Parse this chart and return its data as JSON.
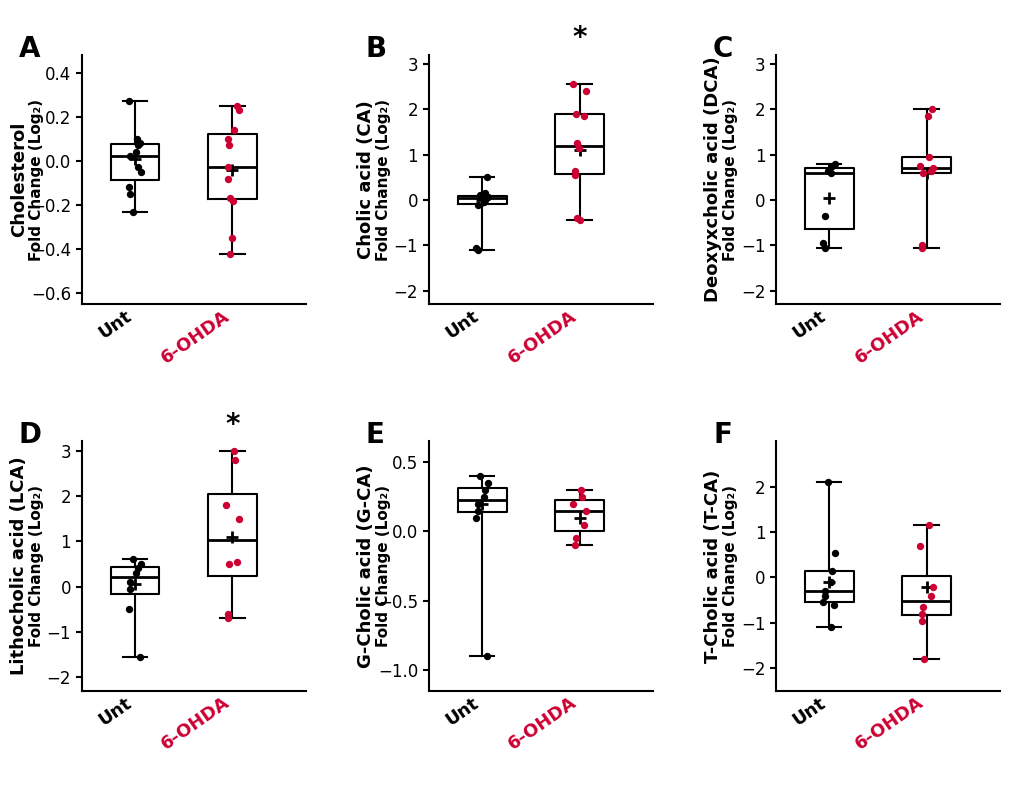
{
  "panels": [
    {
      "label": "A",
      "ylabel_bold": "Cholesterol",
      "ylabel_sub": "Fold Change (Log₂)",
      "ylim": [
        -0.65,
        0.48
      ],
      "yticks": [
        -0.6,
        -0.4,
        -0.2,
        0.0,
        0.2,
        0.4
      ],
      "significance": null,
      "unt_data": [
        -0.23,
        -0.05,
        0.07,
        0.04,
        0.02,
        -0.15,
        -0.12,
        0.08,
        0.1,
        -0.03,
        0.27
      ],
      "ohda_data": [
        0.23,
        0.25,
        0.07,
        0.1,
        -0.03,
        -0.17,
        -0.18,
        -0.35,
        -0.42,
        0.14,
        -0.08
      ],
      "unt_mean": 0.01,
      "ohda_mean": -0.04
    },
    {
      "label": "B",
      "ylabel_bold": "Cholic acid (CA)",
      "ylabel_sub": "Fold Change (Log₂)",
      "ylim": [
        -2.3,
        3.2
      ],
      "yticks": [
        -2,
        -1,
        0,
        1,
        2,
        3
      ],
      "significance": "*",
      "unt_data": [
        0.1,
        0.07,
        0.15,
        -0.05,
        -0.1,
        -1.1,
        -1.05,
        0.5,
        0.08,
        0.0
      ],
      "ohda_data": [
        2.55,
        2.4,
        1.85,
        1.9,
        0.65,
        0.55,
        -0.4,
        -0.45,
        1.15,
        1.25
      ],
      "unt_mean": 0.0,
      "ohda_mean": 1.1
    },
    {
      "label": "C",
      "ylabel_bold": "Deoxyxcholic acid (DCA)",
      "ylabel_sub": "Fold Change (Log₂)",
      "ylim": [
        -2.3,
        3.2
      ],
      "yticks": [
        -2,
        -1,
        0,
        1,
        2,
        3
      ],
      "significance": null,
      "unt_data": [
        0.65,
        0.8,
        0.75,
        0.6,
        -0.35,
        -1.05,
        -0.95
      ],
      "ohda_data": [
        2.0,
        1.85,
        0.95,
        0.75,
        0.7,
        0.65,
        0.6,
        -1.05,
        -1.0
      ],
      "unt_mean": 0.05,
      "ohda_mean": 0.6
    },
    {
      "label": "D",
      "ylabel_bold": "Lithocholic acid (LCA)",
      "ylabel_sub": "Fold Change (Log₂)",
      "ylim": [
        -2.3,
        3.2
      ],
      "yticks": [
        -2,
        -1,
        0,
        1,
        2,
        3
      ],
      "significance": "*",
      "unt_data": [
        0.6,
        0.5,
        0.4,
        0.3,
        0.1,
        -0.05,
        -0.5,
        -1.55
      ],
      "ohda_data": [
        3.0,
        2.8,
        1.8,
        1.5,
        0.55,
        0.5,
        -0.6,
        -0.7
      ],
      "unt_mean": 0.05,
      "ohda_mean": 1.1
    },
    {
      "label": "E",
      "ylabel_bold": "G-Cholic acid (G-CA)",
      "ylabel_sub": "Fold Change (Log₂)",
      "ylim": [
        -1.15,
        0.65
      ],
      "yticks": [
        -1.0,
        -0.5,
        0.0,
        0.5
      ],
      "significance": null,
      "unt_data": [
        0.4,
        0.35,
        0.3,
        0.25,
        0.2,
        0.15,
        0.1,
        -0.9
      ],
      "ohda_data": [
        0.3,
        0.25,
        0.2,
        0.15,
        0.05,
        -0.05,
        -0.1
      ],
      "unt_mean": 0.2,
      "ohda_mean": 0.1
    },
    {
      "label": "F",
      "ylabel_bold": "T-Cholic acid (T-CA)",
      "ylabel_sub": "Fold Change (Log₂)",
      "ylim": [
        -2.5,
        3.0
      ],
      "yticks": [
        -2,
        -1,
        0,
        1,
        2
      ],
      "significance": null,
      "unt_data": [
        2.1,
        0.55,
        0.15,
        -0.1,
        -0.3,
        -0.4,
        -0.55,
        -0.6,
        -1.1
      ],
      "ohda_data": [
        1.15,
        0.7,
        -0.2,
        -0.4,
        -0.65,
        -0.8,
        -0.95,
        -1.8
      ],
      "unt_mean": -0.1,
      "ohda_mean": -0.2
    }
  ],
  "box_color": "#000000",
  "unt_dot_color": "#000000",
  "ohda_dot_color": "#cc0033",
  "ohda_label_color": "#cc0033",
  "median_line_color": "#000000",
  "background_color": "#ffffff",
  "label_fontsize": 20,
  "ylabel_bold_fontsize": 13,
  "ylabel_sub_fontsize": 11,
  "tick_fontsize": 12,
  "xtick_fontsize": 13,
  "sig_fontsize": 20
}
